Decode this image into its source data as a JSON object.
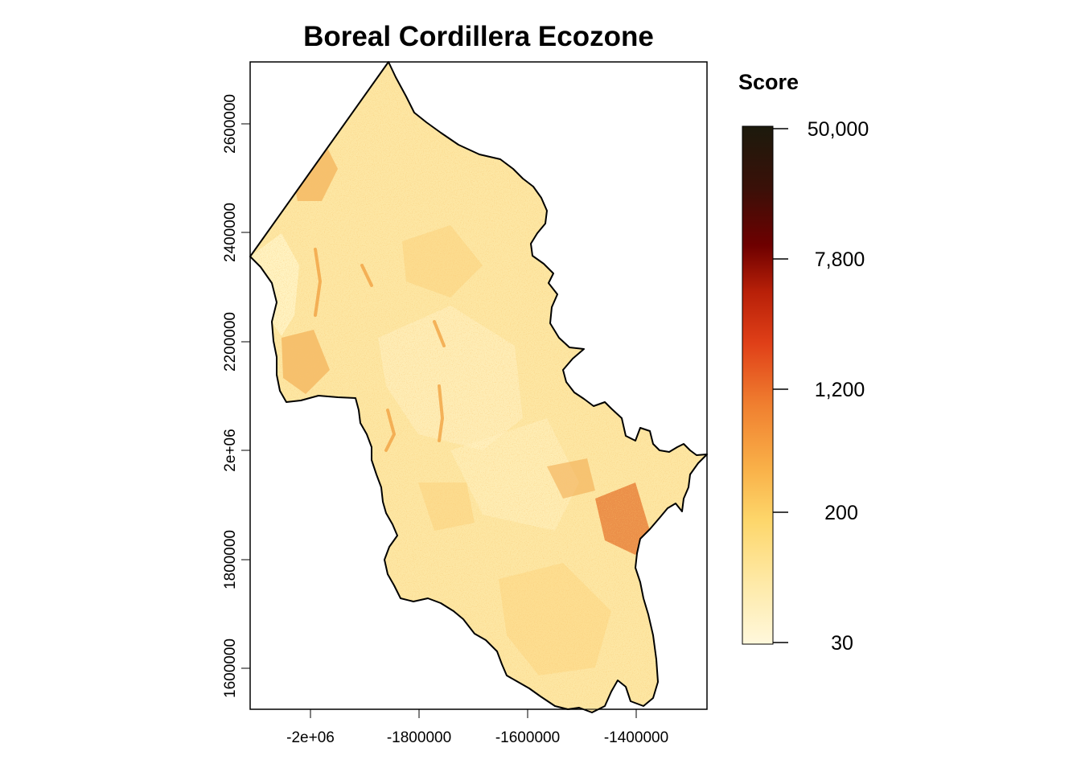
{
  "map": {
    "title": "Boreal Cordillera Ecozone",
    "x_ticks": [
      "-2e+06",
      "-1800000",
      "-1600000",
      "-1400000"
    ],
    "y_ticks": [
      "2600000",
      "2400000",
      "2200000",
      "2e+06",
      "1800000",
      "1600000"
    ]
  },
  "legend": {
    "title": "Score",
    "labels": [
      "50,000",
      "7,800",
      "1,200",
      "200",
      "30"
    ],
    "colors": [
      "#fff8dc",
      "#fee9a6",
      "#fdd66a",
      "#f9b048",
      "#f08030",
      "#e04018",
      "#b82008",
      "#6e0000",
      "#3a1008",
      "#1c1a0c"
    ]
  },
  "palette": {
    "land_base": "#fde7a4",
    "land_light": "#fff3c4",
    "land_mid": "#fcd27a",
    "land_orange": "#f0a040",
    "land_hot": "#e26018",
    "boundary": "#000000"
  }
}
